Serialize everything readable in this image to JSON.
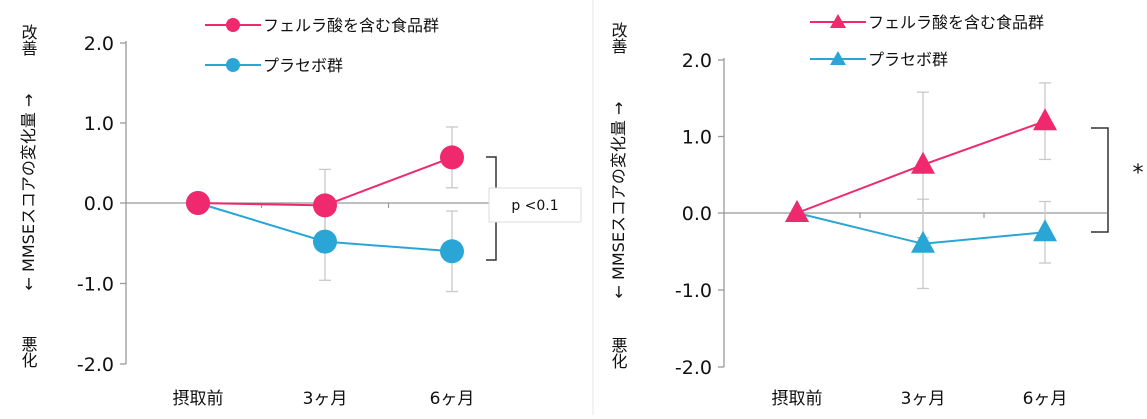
{
  "chart_data": [
    {
      "type": "line",
      "marker": "circle",
      "categories": [
        "摂取前",
        "3ヶ月",
        "6ヶ月"
      ],
      "ylim": [
        -2.0,
        2.0
      ],
      "yticks": [
        "2.0",
        "1.0",
        "0.0",
        "-1.0",
        "-2.0"
      ],
      "ylabel_top": "改善",
      "ylabel_mid": "← MMSEスコアの変化量 →",
      "ylabel_bottom": "悪化",
      "series": [
        {
          "name": "フェルラ酸を含む食品群",
          "color": "#f0286e",
          "values": [
            0.0,
            -0.03,
            0.57
          ],
          "err": [
            0,
            0.45,
            0.38
          ]
        },
        {
          "name": "プラセボ群",
          "color": "#2aa6d6",
          "values": [
            0.0,
            -0.48,
            -0.6
          ],
          "err": [
            0,
            0.48,
            0.5
          ]
        }
      ],
      "annotation": "p <0.1"
    },
    {
      "type": "line",
      "marker": "triangle",
      "categories": [
        "摂取前",
        "3ヶ月",
        "6ヶ月"
      ],
      "ylim": [
        -2.0,
        2.0
      ],
      "yticks": [
        "2.0",
        "1.0",
        "0.0",
        "-1.0",
        "-2.0"
      ],
      "ylabel_top": "改善",
      "ylabel_mid": "← MMSEスコアの変化量 →",
      "ylabel_bottom": "悪化",
      "series": [
        {
          "name": "フェルラ酸を含む食品群",
          "color": "#f0286e",
          "values": [
            0.0,
            0.63,
            1.2
          ],
          "err": [
            0,
            0.95,
            0.5
          ]
        },
        {
          "name": "プラセボ群",
          "color": "#2aa6d6",
          "values": [
            0.0,
            -0.4,
            -0.25
          ],
          "err": [
            0,
            0.58,
            0.4
          ]
        }
      ],
      "annotation": "*"
    }
  ]
}
